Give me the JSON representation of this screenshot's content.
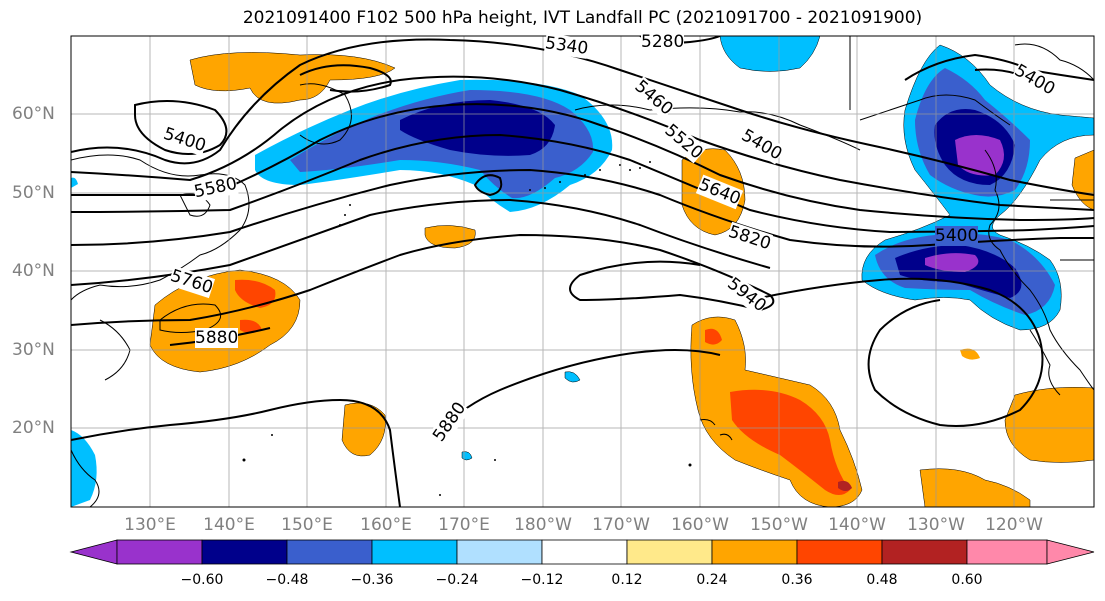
{
  "title": "2021091400 F102 500 hPa height, IVT Landfall PC (2021091700 - 2021091900)",
  "lat_labels": [
    "60°N",
    "50°N",
    "40°N",
    "30°N",
    "20°N"
  ],
  "lon_labels": [
    "130°E",
    "140°E",
    "150°E",
    "160°E",
    "170°E",
    "180°W",
    "170°W",
    "160°W",
    "150°W",
    "140°W",
    "130°W",
    "120°W"
  ],
  "contour_labels": [
    "5280",
    "5340",
    "5400",
    "5460",
    "5520",
    "5580",
    "5640",
    "5760",
    "5820",
    "5880",
    "5940",
    "5400",
    "5400",
    "5400",
    "5880"
  ],
  "colorbar": {
    "tick_labels": [
      "−0.60",
      "−0.48",
      "−0.36",
      "−0.24",
      "−0.12",
      "0.12",
      "0.24",
      "0.36",
      "0.48",
      "0.60"
    ],
    "colors": [
      "#9932cc",
      "#00008b",
      "#3a5fcd",
      "#00bfff",
      "#b0e0ff",
      "#ffffff",
      "#ffe98a",
      "#ffa500",
      "#ff4500",
      "#b22222",
      "#ff88aa"
    ]
  }
}
